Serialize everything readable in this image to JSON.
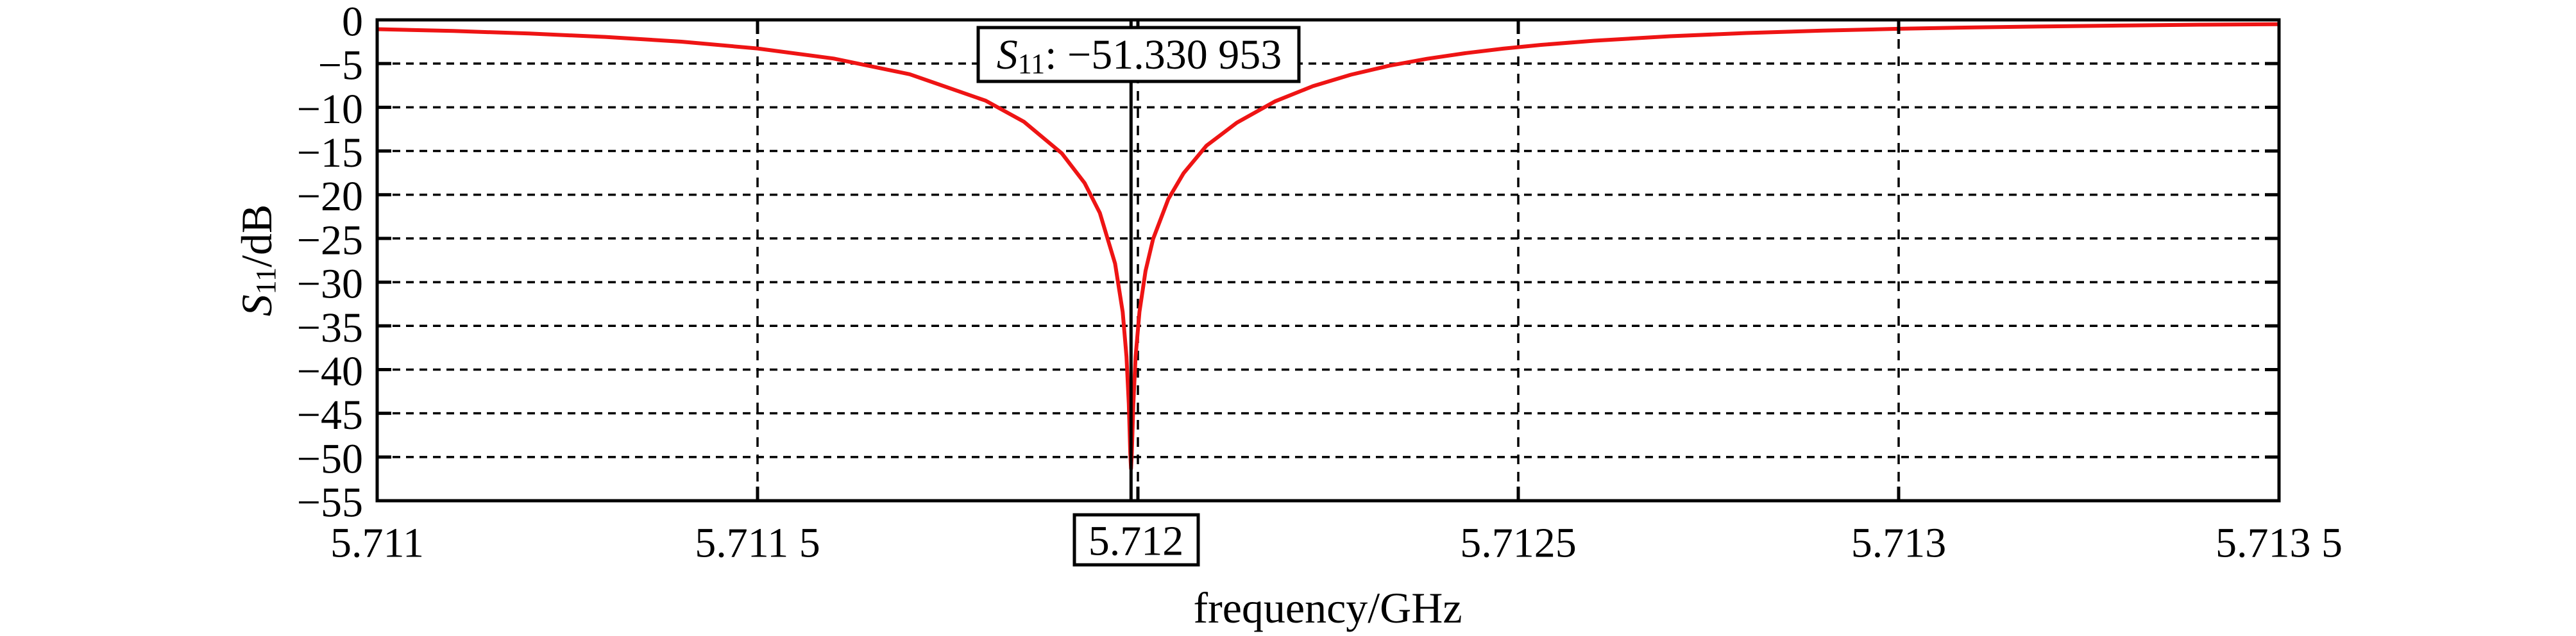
{
  "page": {
    "background": "#ffffff",
    "frame_color": "#000000"
  },
  "chart_data": {
    "type": "line",
    "title": "",
    "xlabel": "frequency/GHz",
    "ylabel": {
      "base": "S",
      "sub": "11",
      "rest": "/dB"
    },
    "xlim": [
      5.711,
      5.7135
    ],
    "ylim": [
      -55,
      0
    ],
    "grid": {
      "shown": true,
      "style": "dashed",
      "color": "#000000"
    },
    "legend": {
      "shown": false
    },
    "xticks": [
      {
        "value": 5.711,
        "label": "5.711",
        "boxed": false
      },
      {
        "value": 5.7115,
        "label": "5.711 5",
        "boxed": false
      },
      {
        "value": 5.712,
        "label": "5.712",
        "boxed": true
      },
      {
        "value": 5.7125,
        "label": "5.7125",
        "boxed": false
      },
      {
        "value": 5.713,
        "label": "5.713",
        "boxed": false
      },
      {
        "value": 5.7135,
        "label": "5.713 5",
        "boxed": false
      }
    ],
    "yticks": [
      {
        "value": 0,
        "label": "0"
      },
      {
        "value": -5,
        "label": "−5"
      },
      {
        "value": -10,
        "label": "−10"
      },
      {
        "value": -15,
        "label": "−15"
      },
      {
        "value": -20,
        "label": "−20"
      },
      {
        "value": -25,
        "label": "−25"
      },
      {
        "value": -30,
        "label": "−30"
      },
      {
        "value": -35,
        "label": "−35"
      },
      {
        "value": -40,
        "label": "−40"
      },
      {
        "value": -45,
        "label": "−45"
      },
      {
        "value": -50,
        "label": "−50"
      },
      {
        "value": -55,
        "label": "−55"
      }
    ],
    "marker": {
      "frequency_GHz": 5.711991,
      "value_dB": -51.330953,
      "tick_label": "5.712",
      "annotation": {
        "base": "S",
        "sub": "11",
        "rest": ": −51.330 953"
      },
      "annotation_color": "#ee1414",
      "line_color": "#000000"
    },
    "series": [
      {
        "name": "S11",
        "color": "#ee1414",
        "points": [
          [
            5.711,
            -1.06
          ],
          [
            5.7111,
            -1.27
          ],
          [
            5.7112,
            -1.56
          ],
          [
            5.7113,
            -1.95
          ],
          [
            5.7114,
            -2.49
          ],
          [
            5.7115,
            -3.27
          ],
          [
            5.7116,
            -4.42
          ],
          [
            5.7117,
            -6.22
          ],
          [
            5.7118,
            -9.25
          ],
          [
            5.71185,
            -11.64
          ],
          [
            5.7119,
            -15.27
          ],
          [
            5.71193,
            -18.67
          ],
          [
            5.71195,
            -22.09
          ],
          [
            5.71197,
            -27.87
          ],
          [
            5.71198,
            -33.42
          ],
          [
            5.711985,
            -38.52
          ],
          [
            5.711988,
            -43.91
          ],
          [
            5.71199,
            -49.55
          ],
          [
            5.711991,
            -51.33
          ],
          [
            5.711992,
            -49.55
          ],
          [
            5.711994,
            -43.91
          ],
          [
            5.711997,
            -38.52
          ],
          [
            5.712002,
            -33.42
          ],
          [
            5.71201,
            -28.72
          ],
          [
            5.71202,
            -25.06
          ],
          [
            5.71204,
            -20.5
          ],
          [
            5.71206,
            -17.54
          ],
          [
            5.71209,
            -14.4
          ],
          [
            5.71213,
            -11.76
          ],
          [
            5.71218,
            -9.33
          ],
          [
            5.71223,
            -7.58
          ],
          [
            5.71228,
            -6.27
          ],
          [
            5.71233,
            -5.25
          ],
          [
            5.71238,
            -4.45
          ],
          [
            5.71243,
            -3.81
          ],
          [
            5.71248,
            -3.29
          ],
          [
            5.71253,
            -2.86
          ],
          [
            5.7126,
            -2.38
          ],
          [
            5.7127,
            -1.87
          ],
          [
            5.7128,
            -1.5
          ],
          [
            5.7129,
            -1.23
          ],
          [
            5.713,
            -1.02
          ],
          [
            5.7131,
            -0.86
          ],
          [
            5.7132,
            -0.74
          ],
          [
            5.7133,
            -0.64
          ],
          [
            5.7134,
            -0.55
          ],
          [
            5.7135,
            -0.49
          ]
        ]
      }
    ]
  }
}
